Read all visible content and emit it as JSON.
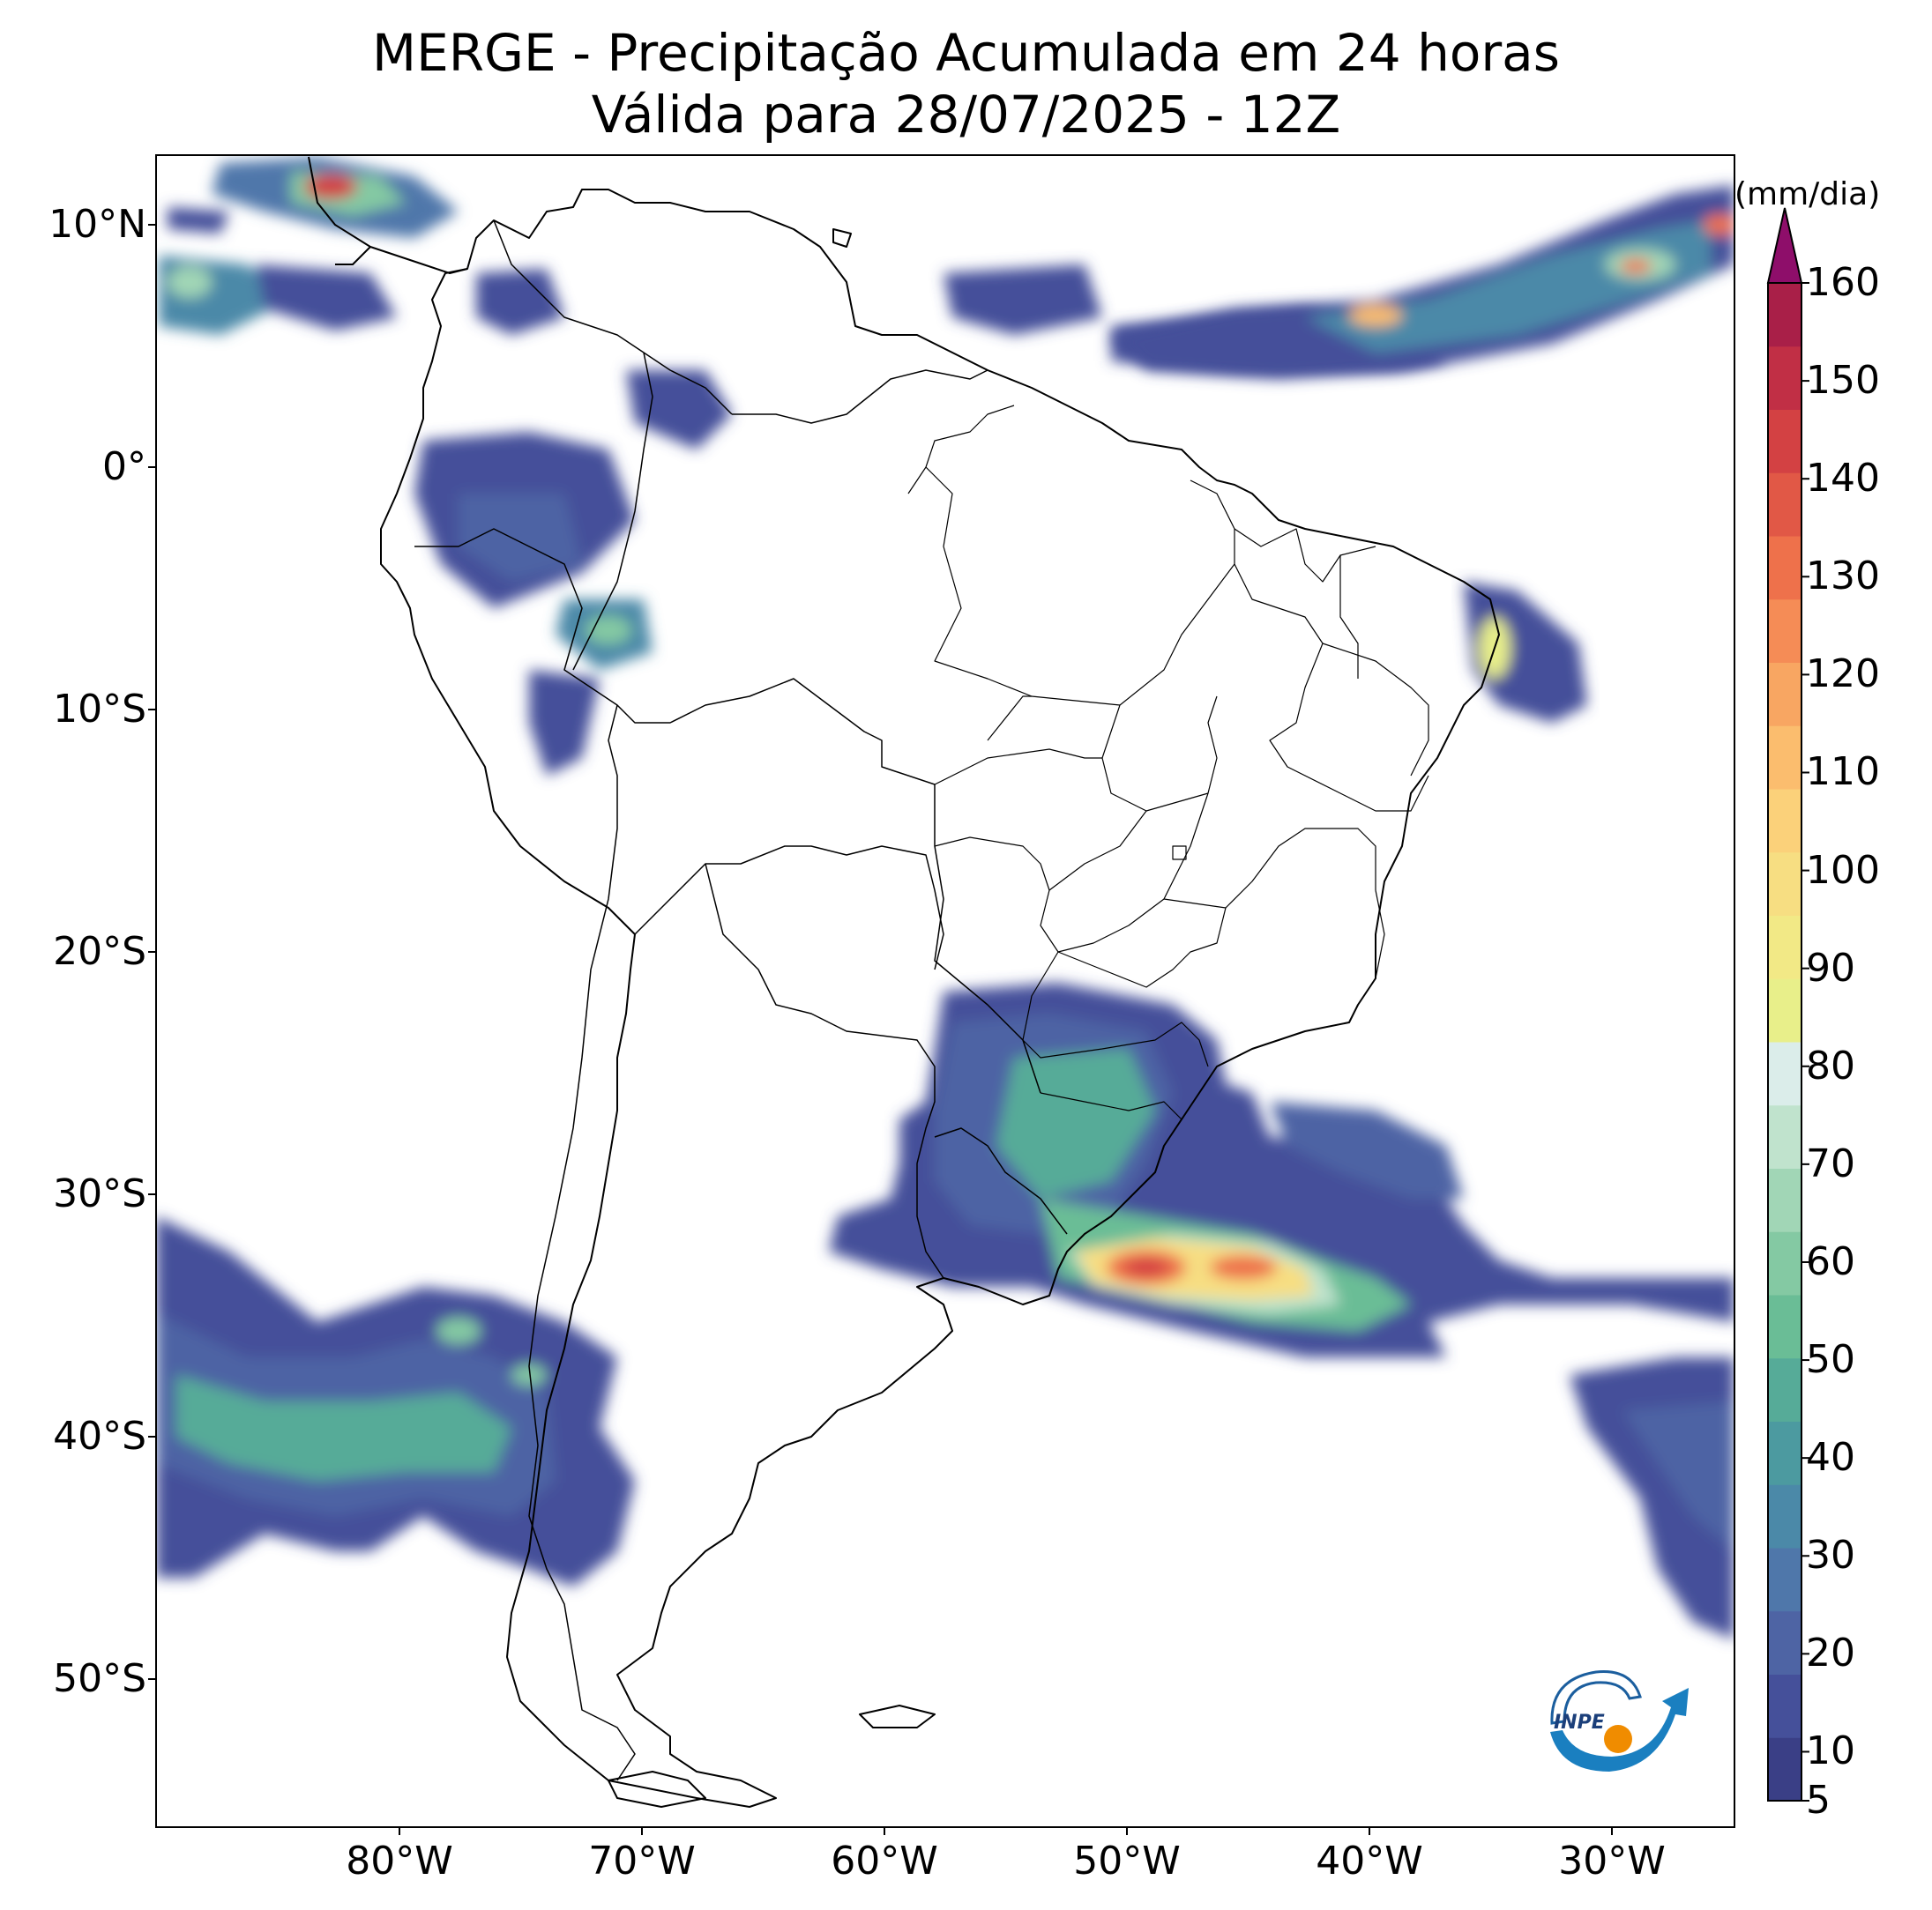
{
  "title": {
    "line1": "MERGE - Precipitação Acumulada em 24 horas",
    "line2": "Válida para 28/07/2025 - 12Z"
  },
  "map": {
    "region": "South America",
    "extent": {
      "lon": [
        -90,
        -25
      ],
      "lat": [
        -56,
        13
      ]
    },
    "lat_ticks": [
      "10°N",
      "0°",
      "10°S",
      "20°S",
      "30°S",
      "40°S",
      "50°S"
    ],
    "lon_ticks": [
      "80°W",
      "70°W",
      "60°W",
      "50°W",
      "40°W",
      "30°W"
    ]
  },
  "colorbar": {
    "unit": "(mm/dia)",
    "labels": [
      "5",
      "10",
      "20",
      "30",
      "40",
      "50",
      "60",
      "70",
      "80",
      "90",
      "100",
      "110",
      "120",
      "130",
      "140",
      "150",
      "160"
    ],
    "extend": "max",
    "colors": [
      "#3a3f86",
      "#45509a",
      "#4e64a4",
      "#4f77aa",
      "#4b89a8",
      "#4c9aa0",
      "#56ab98",
      "#6abd96",
      "#84c9a3",
      "#a1d6b6",
      "#c0e3cd",
      "#dbedea",
      "#e8ef8a",
      "#f2e986",
      "#f7de82",
      "#fbd17a",
      "#fbbd6e",
      "#f8a662",
      "#f58c56",
      "#ee714b",
      "#e15846",
      "#d34143",
      "#c12f45",
      "#a91f48",
      "#8e0e6a"
    ]
  },
  "logo": {
    "text": "INPE"
  }
}
